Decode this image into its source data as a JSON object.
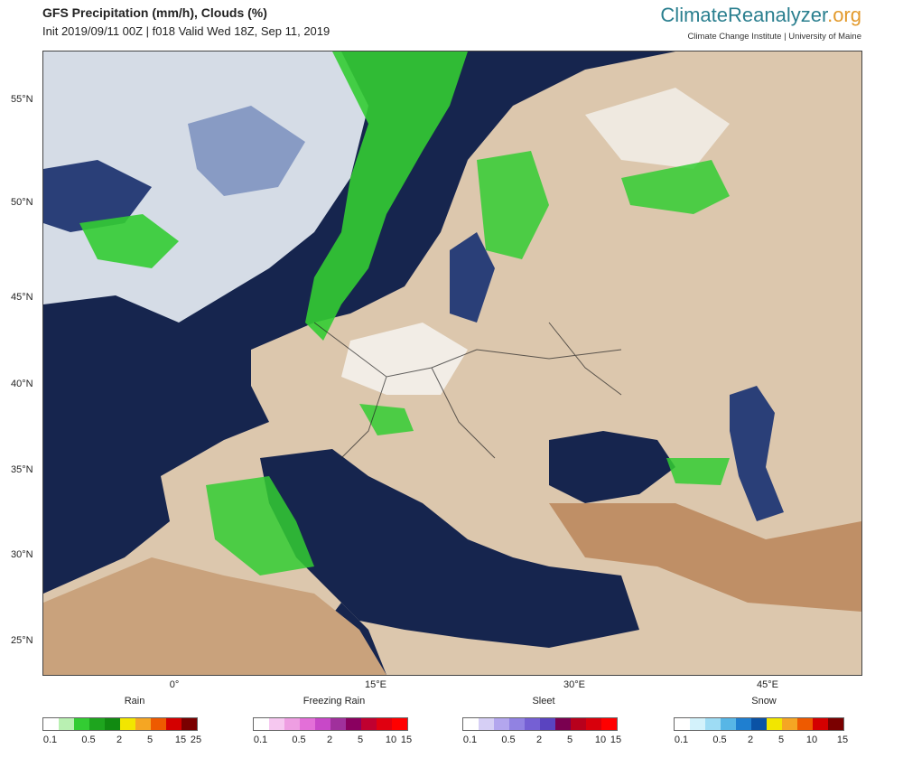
{
  "header": {
    "title": "GFS Precipitation (mm/h), Clouds (%)",
    "subtitle": "Init 2019/09/11 00Z | f018 Valid Wed 18Z, Sep 11, 2019",
    "brand_part1": "Climate",
    "brand_part2": "Reanalyzer",
    "brand_part3": ".org",
    "brand_sub": "Climate Change Institute | University of Maine"
  },
  "axes": {
    "latitudes": [
      "55°N",
      "50°N",
      "45°N",
      "40°N",
      "35°N",
      "30°N",
      "25°N"
    ],
    "longitudes": [
      "0°",
      "15°E",
      "30°E",
      "45°E"
    ]
  },
  "legends": [
    {
      "title": "Rain",
      "colors": [
        "#ffffff",
        "#b9f0b2",
        "#33cc33",
        "#1ea51e",
        "#118a11",
        "#f2e600",
        "#f5a623",
        "#ee5a00",
        "#d40000",
        "#7a0000"
      ],
      "ticks": [
        "0.1",
        "0.5",
        "2",
        "5",
        "15",
        "25"
      ]
    },
    {
      "title": "Freezing Rain",
      "colors": [
        "#ffffff",
        "#f6c8f0",
        "#ee9ee2",
        "#e36fd8",
        "#c848c8",
        "#a0309c",
        "#8a0060",
        "#c00030",
        "#e00010",
        "#ff0000"
      ],
      "ticks": [
        "0.1",
        "0.5",
        "2",
        "5",
        "10",
        "15"
      ]
    },
    {
      "title": "Sleet",
      "colors": [
        "#ffffff",
        "#d6cff5",
        "#b3a6ee",
        "#9182e2",
        "#7560d4",
        "#5a44c0",
        "#7a0050",
        "#b8001c",
        "#d8000c",
        "#ff0000"
      ],
      "ticks": [
        "0.1",
        "0.5",
        "2",
        "5",
        "10",
        "15"
      ]
    },
    {
      "title": "Snow",
      "colors": [
        "#ffffff",
        "#d3f2fb",
        "#9edcf4",
        "#57b6e6",
        "#1f7fd0",
        "#0a52a5",
        "#f2e600",
        "#f5a623",
        "#ee5a00",
        "#d40000",
        "#7a0000"
      ],
      "ticks": [
        "0.1",
        "0.5",
        "2",
        "5",
        "10",
        "15"
      ]
    }
  ]
}
